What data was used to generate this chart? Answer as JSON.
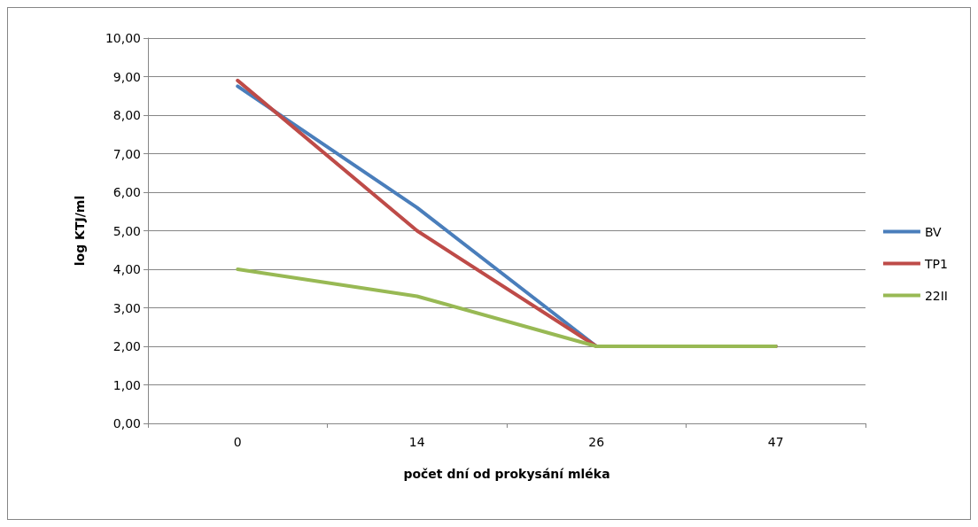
{
  "chart_data": {
    "type": "line",
    "xlabel": "počet dní od prokysání mléka",
    "ylabel": "log KTJ/ml",
    "categories": [
      "0",
      "14",
      "26",
      "47"
    ],
    "series": [
      {
        "name": "BV",
        "color": "#4a7ebb",
        "values": [
          8.75,
          5.6,
          2.0,
          2.0
        ]
      },
      {
        "name": "TP1",
        "color": "#be4b48",
        "values": [
          8.9,
          5.0,
          2.0,
          2.0
        ]
      },
      {
        "name": "22II",
        "color": "#98b954",
        "values": [
          4.0,
          3.3,
          2.0,
          2.0
        ]
      }
    ],
    "ylim": [
      0,
      10
    ],
    "yticks": [
      {
        "value": 0,
        "label": "0,00"
      },
      {
        "value": 1,
        "label": "1,00"
      },
      {
        "value": 2,
        "label": "2,00"
      },
      {
        "value": 3,
        "label": "3,00"
      },
      {
        "value": 4,
        "label": "4,00"
      },
      {
        "value": 5,
        "label": "5,00"
      },
      {
        "value": 6,
        "label": "6,00"
      },
      {
        "value": 7,
        "label": "7,00"
      },
      {
        "value": 8,
        "label": "8,00"
      },
      {
        "value": 9,
        "label": "9,00"
      },
      {
        "value": 10,
        "label": "10,00"
      }
    ],
    "grid": "y",
    "legend": "right",
    "marker": "none",
    "line_style": "solid"
  }
}
